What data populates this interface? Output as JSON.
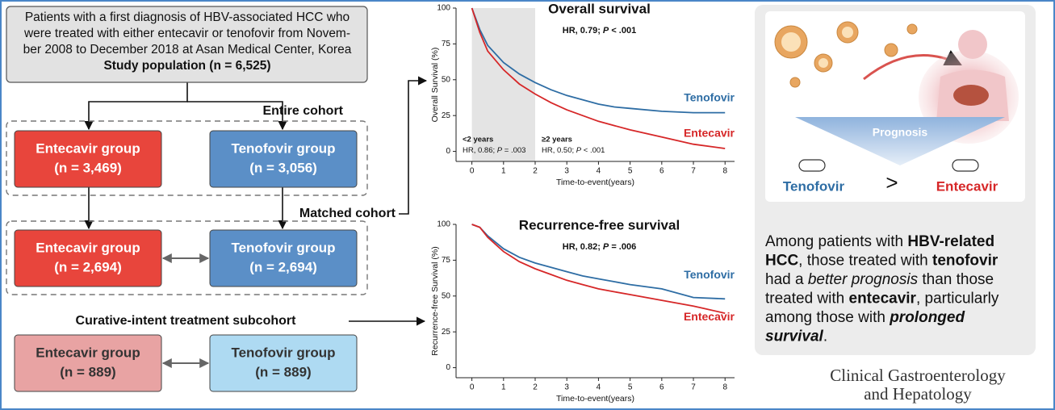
{
  "flowchart": {
    "top_box": {
      "lines": [
        "Patients with a first diagnosis of HBV-associated HCC who",
        "were treated with either entecavir or tenofovir from Novem-",
        "ber 2008 to December 2018 at Asan Medical Center, Korea"
      ],
      "bold": "Study population (n = 6,525)"
    },
    "entire_cohort": {
      "label": "Entire cohort",
      "entecavir": {
        "name": "Entecavir group",
        "n": "(n = 3,469)"
      },
      "tenofovir": {
        "name": "Tenofovir group",
        "n": "(n = 3,056)"
      }
    },
    "matched_cohort": {
      "label": "Matched cohort",
      "entecavir": {
        "name": "Entecavir group",
        "n": "(n = 2,694)"
      },
      "tenofovir": {
        "name": "Tenofovir group",
        "n": "(n = 2,694)"
      }
    },
    "subcohort": {
      "label": "Curative-intent treatment subcohort",
      "entecavir": {
        "name": "Entecavir group",
        "n": "(n = 889)"
      },
      "tenofovir": {
        "name": "Tenofovir group",
        "n": "(n = 889)"
      }
    }
  },
  "chart_data": [
    {
      "type": "line",
      "title": "Overall survival",
      "annotation": [
        "HR, 0.79; ",
        "P",
        " < .001"
      ],
      "xlabel": "Time-to-event(years)",
      "ylabel": "Overall Survival (%)",
      "shaded_x": [
        0,
        2
      ],
      "period_notes": [
        {
          "label": "<2 years",
          "hr": [
            "HR, 0.86; ",
            "P",
            " = .003"
          ]
        },
        {
          "label": "≥2 years",
          "hr": [
            "HR, 0.50; ",
            "P",
            " < .001"
          ]
        }
      ],
      "x": [
        0,
        0.25,
        0.5,
        1,
        1.5,
        2,
        2.5,
        3,
        3.5,
        4,
        4.5,
        5,
        6,
        7,
        8
      ],
      "series": [
        {
          "name": "Tenofovir",
          "color": "#2e6da4",
          "values": [
            100,
            85,
            74,
            62,
            54,
            48,
            43,
            39,
            36,
            33,
            31,
            30,
            28,
            27,
            27
          ]
        },
        {
          "name": "Entecavir",
          "color": "#d62728",
          "values": [
            100,
            83,
            70,
            57,
            47,
            40,
            34,
            29,
            25,
            21,
            18,
            15,
            10,
            5,
            2
          ]
        }
      ],
      "xlim": [
        -0.5,
        8.3
      ],
      "ylim": [
        -7,
        100
      ],
      "xticks": [
        0,
        1,
        2,
        3,
        4,
        5,
        6,
        7,
        8
      ],
      "yticks": [
        0,
        25,
        50,
        75,
        100
      ]
    },
    {
      "type": "line",
      "title": "Recurrence-free survival",
      "annotation": [
        "HR, 0.82; ",
        "P",
        " = .006"
      ],
      "xlabel": "Time-to-event(years)",
      "ylabel": "Recurrence-free Survival (%)",
      "x": [
        0,
        0.25,
        0.5,
        1,
        1.5,
        2,
        2.5,
        3,
        3.5,
        4,
        4.5,
        5,
        6,
        7,
        8
      ],
      "series": [
        {
          "name": "Tenofovir",
          "color": "#2e6da4",
          "values": [
            100,
            98,
            92,
            83,
            77,
            73,
            70,
            67,
            64,
            62,
            60,
            58,
            55,
            49,
            48
          ]
        },
        {
          "name": "Entecavir",
          "color": "#d62728",
          "values": [
            100,
            98,
            91,
            81,
            74,
            69,
            65,
            61,
            58,
            55,
            53,
            51,
            47,
            43,
            38
          ]
        }
      ],
      "xlim": [
        -0.5,
        8.3
      ],
      "ylim": [
        -7,
        100
      ],
      "xticks": [
        0,
        1,
        2,
        3,
        4,
        5,
        6,
        7,
        8
      ],
      "yticks": [
        0,
        25,
        50,
        75,
        100
      ]
    }
  ],
  "summary": {
    "prognosis": "Prognosis",
    "left": "Tenofovir",
    "comparator": ">",
    "right": "Entecavir",
    "text_lines": [
      [
        {
          "text": "Among patients with "
        },
        {
          "text": "HBV-related",
          "bold": true
        }
      ],
      [
        {
          "text": "HCC",
          "bold": true
        },
        {
          "text": ", those treated with "
        },
        {
          "text": "tenofovir",
          "bold": true
        }
      ],
      [
        {
          "text": "had a "
        },
        {
          "text": "better prognosis",
          "italic": true
        },
        {
          "text": " than those"
        }
      ],
      [
        {
          "text": "treated with "
        },
        {
          "text": "entecavir",
          "bold": true
        },
        {
          "text": ", particularly"
        }
      ],
      [
        {
          "text": "among those with "
        },
        {
          "text": "prolonged",
          "bold": true,
          "italic": true
        }
      ],
      [
        {
          "text": "survival",
          "bold": true,
          "italic": true
        },
        {
          "text": "."
        }
      ]
    ]
  },
  "journal": [
    "Clinical Gastroenterology",
    "and Hepatology"
  ]
}
